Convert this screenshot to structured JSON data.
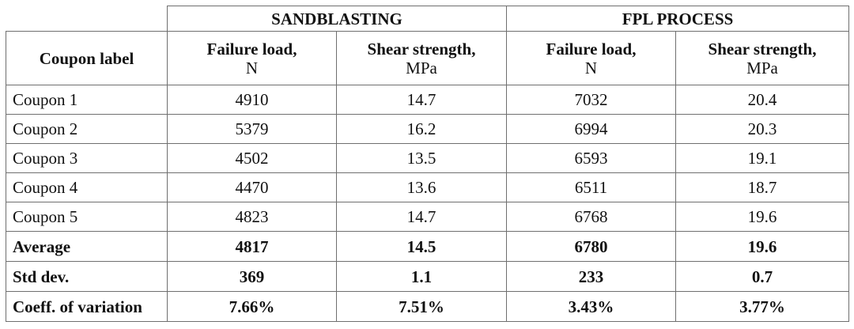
{
  "groups": {
    "sandblasting": "SANDBLASTING",
    "fpl": "FPL PROCESS"
  },
  "headers": {
    "coupon_label": "Coupon label",
    "failure_load": "Failure load,",
    "failure_load_unit": "N",
    "shear_strength": "Shear strength,",
    "shear_strength_unit": "MPa"
  },
  "rows": [
    {
      "label": "Coupon 1",
      "sb_load": "4910",
      "sb_shear": "14.7",
      "fpl_load": "7032",
      "fpl_shear": "20.4"
    },
    {
      "label": "Coupon 2",
      "sb_load": "5379",
      "sb_shear": "16.2",
      "fpl_load": "6994",
      "fpl_shear": "20.3"
    },
    {
      "label": "Coupon 3",
      "sb_load": "4502",
      "sb_shear": "13.5",
      "fpl_load": "6593",
      "fpl_shear": "19.1"
    },
    {
      "label": "Coupon 4",
      "sb_load": "4470",
      "sb_shear": "13.6",
      "fpl_load": "6511",
      "fpl_shear": "18.7"
    },
    {
      "label": "Coupon 5",
      "sb_load": "4823",
      "sb_shear": "14.7",
      "fpl_load": "6768",
      "fpl_shear": "19.6"
    }
  ],
  "stats": [
    {
      "label": "Average",
      "sb_load": "4817",
      "sb_shear": "14.5",
      "fpl_load": "6780",
      "fpl_shear": "19.6"
    },
    {
      "label": "Std dev.",
      "sb_load": "369",
      "sb_shear": "1.1",
      "fpl_load": "233",
      "fpl_shear": "0.7"
    },
    {
      "label": "Coeff. of variation",
      "sb_load": "7.66%",
      "sb_shear": "7.51%",
      "fpl_load": "3.43%",
      "fpl_shear": "3.77%"
    }
  ]
}
